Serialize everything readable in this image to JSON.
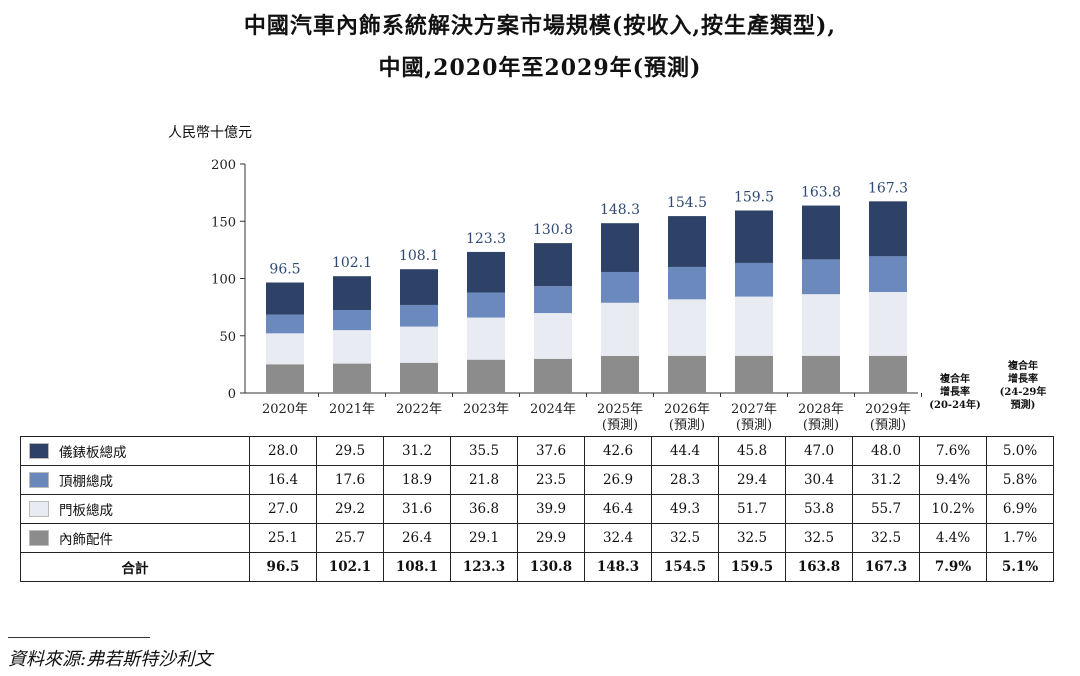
{
  "title_line1": "中國汽車內飾系統解決方案市場規模(按收入,按生產類型),",
  "title_line2": "中國,2020年至2029年(預測)",
  "unit_label": "人民幣十億元",
  "cagr_headers": [
    [
      "複合年",
      "增長率",
      "(20-24年)"
    ],
    [
      "複合年",
      "增長率",
      "(24-29年",
      "預測)"
    ]
  ],
  "colors": {
    "dashboard": "#2d4266",
    "headliner": "#6b89bd",
    "door_panel": "#e8ecf2",
    "accessories": "#8c8c8c",
    "total_label": "#2f4a74"
  },
  "chart_data": {
    "type": "bar",
    "stacked": true,
    "title": "中國汽車內飾系統解決方案市場規模(按收入,按生產類型), 中國,2020年至2029年(預測)",
    "ylabel": "人民幣十億元",
    "ylim": [
      0,
      200
    ],
    "yticks": [
      0,
      50,
      100,
      150,
      200
    ],
    "grid": false,
    "categories": [
      [
        "2020年"
      ],
      [
        "2021年"
      ],
      [
        "2022年"
      ],
      [
        "2023年"
      ],
      [
        "2024年"
      ],
      [
        "2025年",
        "(預測)"
      ],
      [
        "2026年",
        "(預測)"
      ],
      [
        "2027年",
        "(預測)"
      ],
      [
        "2028年",
        "(預測)"
      ],
      [
        "2029年",
        "(預測)"
      ]
    ],
    "series": [
      {
        "name": "內飾配件",
        "color": "#8c8c8c",
        "values": [
          25.1,
          25.7,
          26.4,
          29.1,
          29.9,
          32.4,
          32.5,
          32.5,
          32.5,
          32.5
        ],
        "cagr": [
          "4.4%",
          "1.7%"
        ]
      },
      {
        "name": "門板總成",
        "color": "#e8ecf2",
        "values": [
          27.0,
          29.2,
          31.6,
          36.8,
          39.9,
          46.4,
          49.3,
          51.7,
          53.8,
          55.7
        ],
        "cagr": [
          "10.2%",
          "6.9%"
        ]
      },
      {
        "name": "頂棚總成",
        "color": "#6b89bd",
        "values": [
          16.4,
          17.6,
          18.9,
          21.8,
          23.5,
          26.9,
          28.3,
          29.4,
          30.4,
          31.2
        ],
        "cagr": [
          "9.4%",
          "5.8%"
        ]
      },
      {
        "name": "儀錶板總成",
        "color": "#2d4266",
        "values": [
          28.0,
          29.5,
          31.2,
          35.5,
          37.6,
          42.6,
          44.4,
          45.8,
          47.0,
          48.0
        ],
        "cagr": [
          "7.6%",
          "5.0%"
        ]
      }
    ],
    "totals": [
      96.5,
      102.1,
      108.1,
      123.3,
      130.8,
      148.3,
      154.5,
      159.5,
      163.8,
      167.3
    ],
    "total_label": "合計",
    "total_cagr": [
      "7.9%",
      "5.1%"
    ]
  },
  "table_rows": [
    {
      "label": "儀錶板總成",
      "color": "#2d4266",
      "values": [
        "28.0",
        "29.5",
        "31.2",
        "35.5",
        "37.6",
        "42.6",
        "44.4",
        "45.8",
        "47.0",
        "48.0"
      ],
      "cagr": [
        "7.6%",
        "5.0%"
      ]
    },
    {
      "label": "頂棚總成",
      "color": "#6b89bd",
      "values": [
        "16.4",
        "17.6",
        "18.9",
        "21.8",
        "23.5",
        "26.9",
        "28.3",
        "29.4",
        "30.4",
        "31.2"
      ],
      "cagr": [
        "9.4%",
        "5.8%"
      ]
    },
    {
      "label": "門板總成",
      "color": "#e8ecf2",
      "values": [
        "27.0",
        "29.2",
        "31.6",
        "36.8",
        "39.9",
        "46.4",
        "49.3",
        "51.7",
        "53.8",
        "55.7"
      ],
      "cagr": [
        "10.2%",
        "6.9%"
      ]
    },
    {
      "label": "內飾配件",
      "color": "#8c8c8c",
      "values": [
        "25.1",
        "25.7",
        "26.4",
        "29.1",
        "29.9",
        "32.4",
        "32.5",
        "32.5",
        "32.5",
        "32.5"
      ],
      "cagr": [
        "4.4%",
        "1.7%"
      ]
    }
  ],
  "total_row": {
    "label": "合計",
    "values": [
      "96.5",
      "102.1",
      "108.1",
      "123.3",
      "130.8",
      "148.3",
      "154.5",
      "159.5",
      "163.8",
      "167.3"
    ],
    "cagr": [
      "7.9%",
      "5.1%"
    ]
  },
  "footer": "資料來源:弗若斯特沙利文"
}
